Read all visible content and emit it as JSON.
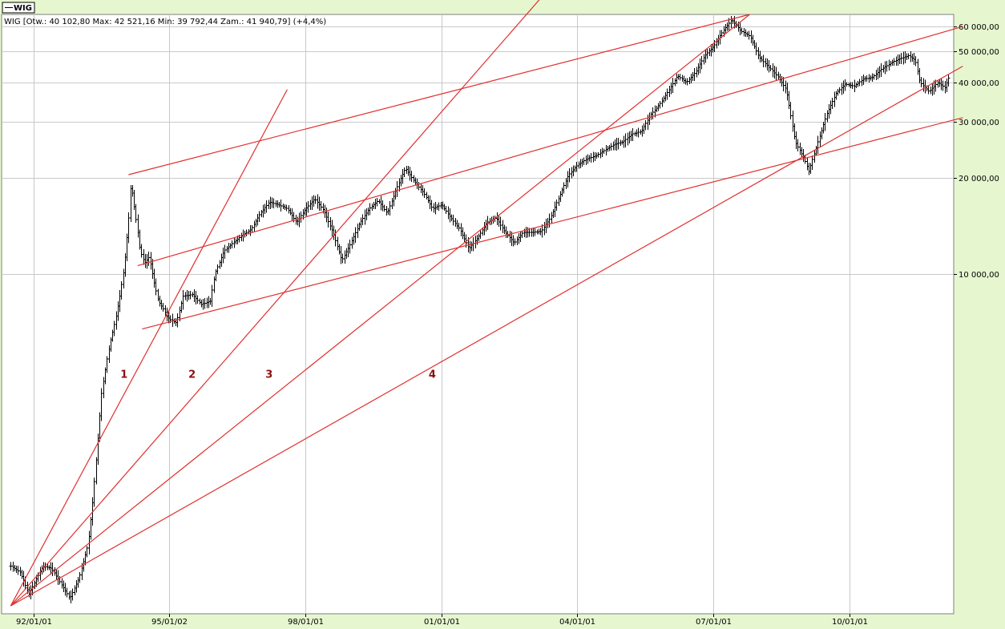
{
  "legend": {
    "label": "WIG"
  },
  "info_line": "WIG [Otw.: 40 102,80   Max: 42 521,16   Min: 39 792,44   Zam.: 41 940,79] (+4,4%)",
  "colors": {
    "trendline": "#e0302f",
    "label": "#8c1010",
    "bars": "#000000",
    "grid": "#c9c9c9",
    "panel": "#e6f7d0"
  },
  "chart_data": {
    "type": "ohlc",
    "title": "",
    "series_name": "WIG",
    "scale": "log",
    "ylim": [
      850,
      65500
    ],
    "xlim": [
      1991.3,
      2012.3
    ],
    "grid": true,
    "legend_position": "top-left",
    "yticks": [
      {
        "value": 10000,
        "label": "10 000,00"
      },
      {
        "value": 20000,
        "label": "20 000,00"
      },
      {
        "value": 30000,
        "label": "30 000,00"
      },
      {
        "value": 40000,
        "label": "40 000,00"
      },
      {
        "value": 50000,
        "label": "50 000,00"
      },
      {
        "value": 60000,
        "label": "60 000,00"
      }
    ],
    "xticks": [
      {
        "value": 1992.0,
        "label": "92/01/01"
      },
      {
        "value": 1995.0,
        "label": "95/01/02"
      },
      {
        "value": 1998.0,
        "label": "98/01/01"
      },
      {
        "value": 2001.0,
        "label": "01/01/01"
      },
      {
        "value": 2004.0,
        "label": "04/01/01"
      },
      {
        "value": 2007.0,
        "label": "07/01/01"
      },
      {
        "value": 2010.0,
        "label": "10/01/01"
      }
    ],
    "monthly_close": [
      [
        1991.5,
        1200
      ],
      [
        1991.7,
        1150
      ],
      [
        1991.9,
        980
      ],
      [
        1992.0,
        1050
      ],
      [
        1992.2,
        1200
      ],
      [
        1992.4,
        1180
      ],
      [
        1992.6,
        1060
      ],
      [
        1992.8,
        950
      ],
      [
        1993.0,
        1100
      ],
      [
        1993.2,
        1400
      ],
      [
        1993.3,
        1900
      ],
      [
        1993.4,
        2800
      ],
      [
        1993.5,
        4200
      ],
      [
        1993.6,
        5200
      ],
      [
        1993.7,
        6200
      ],
      [
        1993.8,
        7100
      ],
      [
        1993.9,
        8500
      ],
      [
        1994.0,
        10500
      ],
      [
        1994.1,
        15000
      ],
      [
        1994.15,
        19500
      ],
      [
        1994.2,
        17000
      ],
      [
        1994.3,
        13500
      ],
      [
        1994.35,
        11800
      ],
      [
        1994.45,
        10800
      ],
      [
        1994.55,
        11300
      ],
      [
        1994.65,
        9500
      ],
      [
        1994.75,
        8200
      ],
      [
        1994.85,
        7800
      ],
      [
        1994.95,
        7300
      ],
      [
        1995.0,
        7200
      ],
      [
        1995.15,
        7000
      ],
      [
        1995.3,
        8500
      ],
      [
        1995.5,
        8600
      ],
      [
        1995.7,
        8000
      ],
      [
        1995.9,
        8200
      ],
      [
        1996.0,
        10000
      ],
      [
        1996.2,
        11800
      ],
      [
        1996.4,
        12500
      ],
      [
        1996.6,
        13200
      ],
      [
        1996.8,
        13800
      ],
      [
        1997.0,
        15500
      ],
      [
        1997.2,
        16800
      ],
      [
        1997.4,
        16500
      ],
      [
        1997.6,
        16000
      ],
      [
        1997.8,
        14500
      ],
      [
        1998.0,
        16000
      ],
      [
        1998.2,
        17200
      ],
      [
        1998.4,
        15800
      ],
      [
        1998.6,
        13500
      ],
      [
        1998.8,
        11000
      ],
      [
        1999.0,
        12500
      ],
      [
        1999.2,
        14500
      ],
      [
        1999.4,
        16000
      ],
      [
        1999.6,
        17000
      ],
      [
        1999.8,
        15500
      ],
      [
        2000.0,
        18500
      ],
      [
        2000.2,
        21500
      ],
      [
        2000.4,
        19500
      ],
      [
        2000.6,
        18000
      ],
      [
        2000.8,
        16000
      ],
      [
        2001.0,
        16500
      ],
      [
        2001.2,
        15000
      ],
      [
        2001.4,
        13800
      ],
      [
        2001.6,
        12000
      ],
      [
        2001.8,
        13000
      ],
      [
        2002.0,
        14500
      ],
      [
        2002.2,
        15000
      ],
      [
        2002.4,
        13500
      ],
      [
        2002.6,
        12500
      ],
      [
        2002.8,
        13500
      ],
      [
        2003.0,
        13500
      ],
      [
        2003.2,
        13600
      ],
      [
        2003.4,
        15000
      ],
      [
        2003.6,
        17500
      ],
      [
        2003.8,
        20500
      ],
      [
        2004.0,
        22000
      ],
      [
        2004.2,
        23000
      ],
      [
        2004.4,
        23500
      ],
      [
        2004.6,
        24500
      ],
      [
        2004.8,
        25500
      ],
      [
        2005.0,
        26000
      ],
      [
        2005.2,
        27500
      ],
      [
        2005.4,
        28000
      ],
      [
        2005.6,
        31500
      ],
      [
        2005.8,
        34000
      ],
      [
        2006.0,
        37500
      ],
      [
        2006.2,
        42000
      ],
      [
        2006.4,
        40000
      ],
      [
        2006.6,
        43000
      ],
      [
        2006.8,
        48500
      ],
      [
        2007.0,
        52000
      ],
      [
        2007.2,
        58000
      ],
      [
        2007.4,
        63000
      ],
      [
        2007.6,
        58000
      ],
      [
        2007.8,
        56000
      ],
      [
        2008.0,
        48000
      ],
      [
        2008.2,
        45000
      ],
      [
        2008.4,
        42000
      ],
      [
        2008.6,
        38000
      ],
      [
        2008.8,
        26000
      ],
      [
        2009.0,
        23000
      ],
      [
        2009.1,
        21000
      ],
      [
        2009.3,
        26000
      ],
      [
        2009.5,
        32000
      ],
      [
        2009.7,
        37000
      ],
      [
        2009.9,
        39500
      ],
      [
        2010.1,
        39000
      ],
      [
        2010.3,
        41000
      ],
      [
        2010.5,
        41500
      ],
      [
        2010.7,
        44000
      ],
      [
        2010.9,
        46000
      ],
      [
        2011.1,
        47500
      ],
      [
        2011.3,
        48500
      ],
      [
        2011.45,
        47000
      ],
      [
        2011.55,
        40000
      ],
      [
        2011.75,
        37500
      ],
      [
        2011.95,
        40000
      ],
      [
        2012.1,
        38500
      ],
      [
        2012.2,
        41940
      ]
    ],
    "trendlines": [
      {
        "from": [
          1991.5,
          900
        ],
        "to": [
          1997.6,
          38000
        ]
      },
      {
        "from": [
          1991.5,
          900
        ],
        "to": [
          2004.0,
          100000
        ]
      },
      {
        "from": [
          1991.5,
          900
        ],
        "to": [
          2007.8,
          65500
        ]
      },
      {
        "from": [
          1991.5,
          900
        ],
        "to": [
          2012.5,
          45000
        ]
      },
      {
        "from": [
          1994.1,
          20500
        ],
        "to": [
          2007.8,
          65500
        ]
      },
      {
        "from": [
          1994.3,
          10600
        ],
        "to": [
          2012.5,
          60000
        ]
      },
      {
        "from": [
          1994.4,
          6700
        ],
        "to": [
          2012.5,
          31000
        ]
      }
    ],
    "trendline_labels": [
      {
        "text": "1",
        "x": 1994.0,
        "y": 4700
      },
      {
        "text": "2",
        "x": 1995.5,
        "y": 4700
      },
      {
        "text": "3",
        "x": 1997.2,
        "y": 4700
      },
      {
        "text": "4",
        "x": 2000.8,
        "y": 4700
      }
    ]
  }
}
